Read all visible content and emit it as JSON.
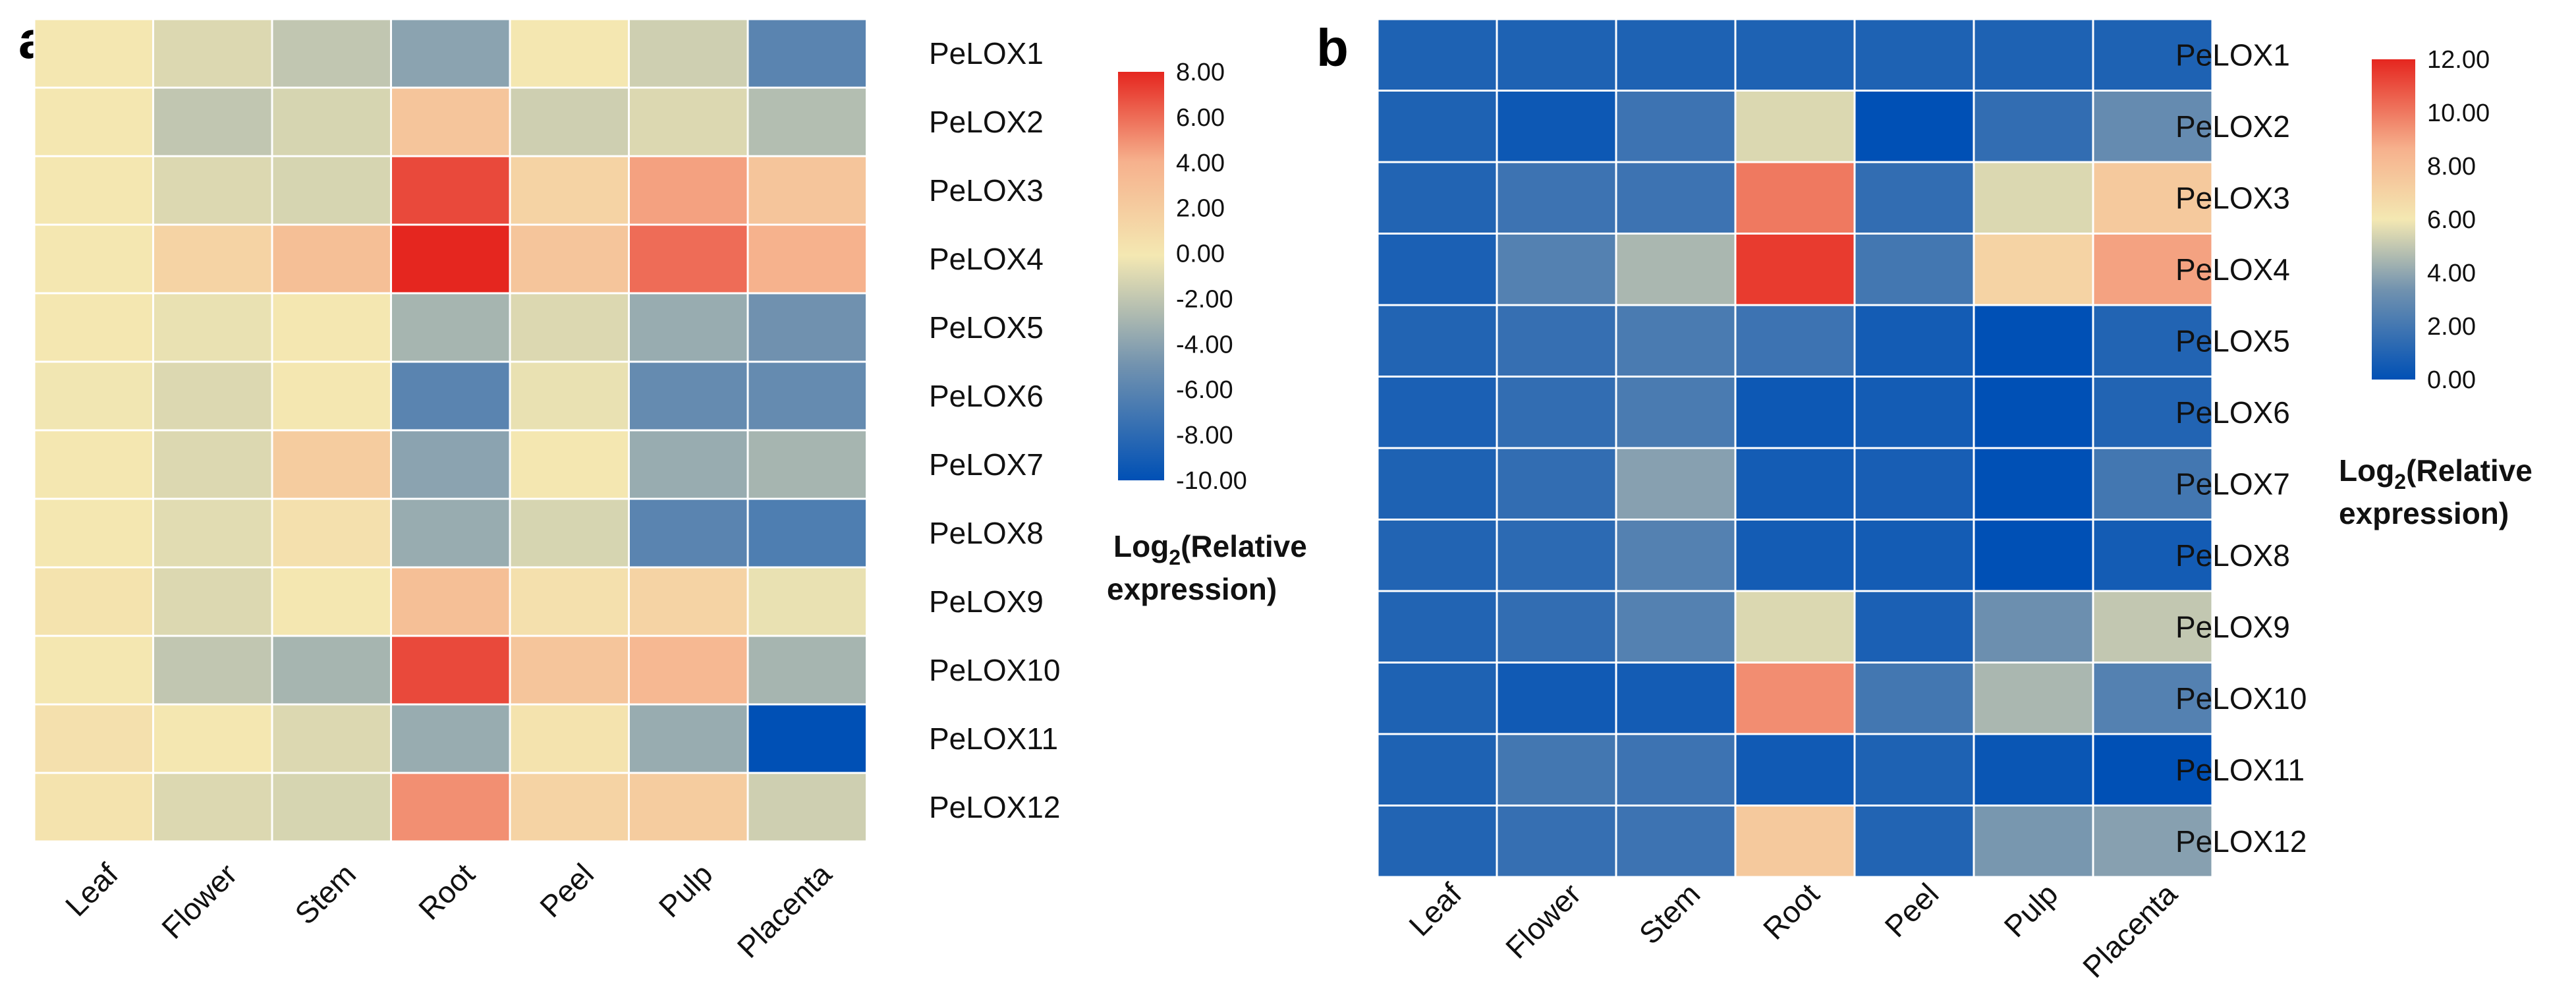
{
  "chart_data": [
    {
      "type": "heatmap",
      "panel": "a",
      "columns": [
        "Leaf",
        "Flower",
        "Stem",
        "Root",
        "Peel",
        "Pulp",
        "Placenta"
      ],
      "rows": [
        "PeLOX1",
        "PeLOX2",
        "PeLOX3",
        "PeLOX4",
        "PeLOX5",
        "PeLOX6",
        "PeLOX7",
        "PeLOX8",
        "PeLOX9",
        "PeLOX10",
        "PeLOX11",
        "PeLOX12"
      ],
      "values": [
        [
          0.0,
          -1.0,
          -2.0,
          -4.0,
          0.0,
          -1.5,
          -6.0
        ],
        [
          0.0,
          -2.0,
          -1.2,
          2.5,
          -1.5,
          -1.0,
          -2.5
        ],
        [
          0.0,
          -1.0,
          -1.2,
          7.0,
          1.5,
          4.5,
          2.5
        ],
        [
          0.0,
          1.5,
          3.0,
          8.0,
          2.5,
          6.0,
          4.0
        ],
        [
          0.0,
          -0.5,
          0.0,
          -3.0,
          -1.0,
          -3.5,
          -5.0
        ],
        [
          -0.2,
          -1.0,
          0.0,
          -6.0,
          -0.5,
          -5.5,
          -5.5
        ],
        [
          0.0,
          -1.0,
          2.0,
          -4.0,
          0.0,
          -3.5,
          -3.0
        ],
        [
          0.0,
          -0.8,
          0.5,
          -3.5,
          -1.2,
          -6.0,
          -6.5
        ],
        [
          0.3,
          -1.0,
          0.0,
          3.0,
          0.5,
          1.5,
          -0.5
        ],
        [
          0.0,
          -2.0,
          -3.0,
          7.0,
          2.5,
          3.5,
          -3.0
        ],
        [
          0.5,
          0.0,
          -1.0,
          -3.5,
          0.3,
          -3.5,
          -10.0
        ],
        [
          0.3,
          -1.0,
          -1.2,
          5.0,
          1.5,
          2.0,
          -1.5
        ]
      ],
      "colorbar": {
        "ticks": [
          "8.00",
          "6.00",
          "4.00",
          "2.00",
          "0.00",
          "-2.00",
          "-4.00",
          "-6.00",
          "-8.00",
          "-10.00"
        ],
        "min": -10.0,
        "max": 8.0,
        "title_main": "Log",
        "title_sub": "2",
        "title_rest": "(Relative",
        "title_line2": "expression)"
      },
      "colormap": {
        "stops": [
          0,
          0.28,
          0.55,
          0.78,
          1
        ],
        "colors": [
          "#0050b5",
          "#7192af",
          "#f4e8b2",
          "#f6b18d",
          "#e5261f"
        ]
      }
    },
    {
      "type": "heatmap",
      "panel": "b",
      "columns": [
        "Leaf",
        "Flower",
        "Stem",
        "Root",
        "Peel",
        "Pulp",
        "Placenta"
      ],
      "rows": [
        "PeLOX1",
        "PeLOX2",
        "PeLOX3",
        "PeLOX4",
        "PeLOX5",
        "PeLOX6",
        "PeLOX7",
        "PeLOX8",
        "PeLOX9",
        "PeLOX10",
        "PeLOX11",
        "PeLOX12"
      ],
      "values": [
        [
          0.9,
          0.9,
          0.9,
          0.9,
          0.9,
          0.9,
          0.9
        ],
        [
          0.9,
          0.4,
          1.8,
          5.5,
          0.0,
          1.5,
          3.0
        ],
        [
          1.0,
          1.8,
          1.8,
          10.0,
          1.5,
          5.5,
          7.5
        ],
        [
          0.8,
          2.5,
          4.5,
          11.5,
          2.0,
          7.0,
          9.0
        ],
        [
          1.0,
          1.6,
          2.2,
          1.8,
          0.6,
          0.0,
          1.0
        ],
        [
          0.8,
          1.5,
          2.2,
          0.4,
          0.6,
          0.0,
          1.0
        ],
        [
          0.9,
          1.5,
          3.8,
          0.6,
          0.7,
          0.0,
          2.0
        ],
        [
          1.0,
          1.3,
          2.5,
          0.6,
          0.6,
          0.0,
          0.6
        ],
        [
          1.0,
          1.5,
          2.5,
          5.5,
          0.8,
          3.2,
          5.0
        ],
        [
          0.9,
          0.5,
          0.6,
          9.5,
          2.0,
          4.5,
          2.5
        ],
        [
          0.9,
          2.0,
          1.8,
          0.5,
          0.9,
          0.3,
          0.0
        ],
        [
          1.0,
          1.6,
          1.8,
          7.5,
          1.0,
          3.5,
          3.8
        ]
      ],
      "colorbar": {
        "ticks": [
          "12.00",
          "10.00",
          "8.00",
          "6.00",
          "4.00",
          "2.00",
          "0.00"
        ],
        "min": 0.0,
        "max": 12.0,
        "title_main": "Log",
        "title_sub": "2",
        "title_rest": "(Relative",
        "title_line2": "expression)"
      },
      "colormap": {
        "stops": [
          0,
          0.28,
          0.5,
          0.72,
          1
        ],
        "colors": [
          "#0050b5",
          "#7192af",
          "#f4e8b2",
          "#f6b18d",
          "#e5261f"
        ]
      }
    }
  ]
}
